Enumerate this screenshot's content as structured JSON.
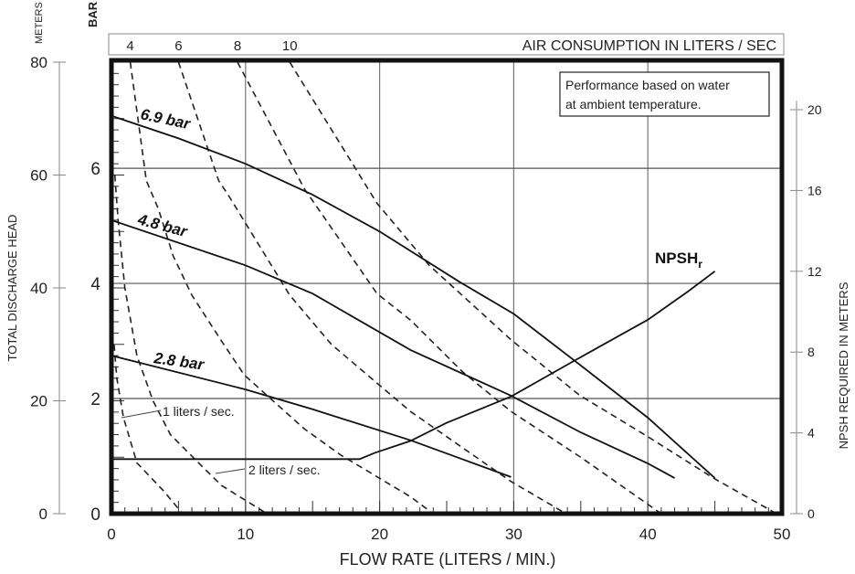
{
  "chart_data": {
    "type": "line",
    "title": "",
    "xlabel": "FLOW RATE (LITERS / MIN.)",
    "ylabel_left": "TOTAL DISCHARGE HEAD",
    "ylabel_left_unit": "METERS",
    "ylabel_left_bar_unit": "BAR",
    "ylabel_right": "NPSH REQUIRED IN METERS",
    "top_axis_title": "AIR CONSUMPTION IN LITERS / SEC",
    "note": "Performance based on water at ambient temperature.",
    "note_lines": [
      "Performance based on water",
      "at ambient temperature."
    ],
    "xlim": [
      0,
      50
    ],
    "ylim_meters": [
      0,
      80
    ],
    "ylim_bar": [
      0,
      7.8
    ],
    "ylim_npsh": [
      0,
      22
    ],
    "grid": true,
    "x_ticks": [
      "0",
      "10",
      "20",
      "30",
      "40",
      "50"
    ],
    "y_ticks_meters": [
      "0",
      "20",
      "40",
      "60",
      "80"
    ],
    "y_ticks_bar": [
      "0",
      "2",
      "4",
      "6"
    ],
    "y_ticks_npsh": [
      "0",
      "4",
      "8",
      "12",
      "16",
      "20"
    ],
    "top_ticks": [
      "4",
      "6",
      "8",
      "10"
    ],
    "pressure_curves": [
      {
        "name": "6.9 bar",
        "points": [
          [
            0,
            70.5
          ],
          [
            5,
            66.5
          ],
          [
            10,
            62
          ],
          [
            15,
            56.5
          ],
          [
            20,
            50
          ],
          [
            26,
            41
          ],
          [
            30,
            35.4
          ],
          [
            34.6,
            27
          ],
          [
            40,
            17
          ],
          [
            45,
            6.3
          ]
        ]
      },
      {
        "name": "4.8 bar",
        "points": [
          [
            0,
            52
          ],
          [
            10,
            44
          ],
          [
            15,
            39
          ],
          [
            22.3,
            29
          ],
          [
            29.8,
            20.9
          ],
          [
            35,
            14.4
          ],
          [
            40,
            8.9
          ],
          [
            42,
            6.3
          ]
        ]
      },
      {
        "name": "2.8 bar",
        "points": [
          [
            0,
            28
          ],
          [
            10,
            22
          ],
          [
            15,
            18.5
          ],
          [
            22.3,
            13
          ],
          [
            29.8,
            6.5
          ]
        ]
      }
    ],
    "air_curves": [
      {
        "name": "1 liters / sec.",
        "points": [
          [
            0.2,
            30
          ],
          [
            0.4,
            24
          ],
          [
            0.9,
            17
          ],
          [
            1.9,
            9
          ],
          [
            3.9,
            4
          ],
          [
            5.3,
            0
          ]
        ]
      },
      {
        "name": "2 liters / sec.",
        "points": [
          [
            0.25,
            60
          ],
          [
            0.5,
            52
          ],
          [
            1,
            40
          ],
          [
            1.9,
            28
          ],
          [
            3.1,
            20
          ],
          [
            4.4,
            14
          ],
          [
            6.5,
            9
          ],
          [
            8.2,
            5
          ],
          [
            11.6,
            0
          ]
        ]
      },
      {
        "name": "4",
        "points": [
          [
            1.4,
            80
          ],
          [
            2.6,
            59
          ],
          [
            3.5,
            54
          ],
          [
            4.6,
            45.7
          ],
          [
            6,
            38.7
          ],
          [
            8.2,
            30.6
          ],
          [
            9.9,
            24.6
          ],
          [
            11.9,
            20.3
          ],
          [
            14.4,
            15
          ],
          [
            17.1,
            10.4
          ],
          [
            22.3,
            3
          ],
          [
            24,
            0
          ]
        ]
      },
      {
        "name": "6",
        "points": [
          [
            5,
            80
          ],
          [
            8,
            59
          ],
          [
            8.7,
            56.5
          ],
          [
            13.3,
            38.7
          ],
          [
            16.4,
            30
          ],
          [
            22.3,
            18.1
          ],
          [
            29.8,
            5.7
          ],
          [
            33.9,
            0
          ]
        ]
      },
      {
        "name": "8",
        "points": [
          [
            9.4,
            80
          ],
          [
            14.4,
            57.5
          ],
          [
            19.8,
            39
          ],
          [
            22.3,
            34.3
          ],
          [
            26.2,
            25.1
          ],
          [
            29.8,
            18.1
          ],
          [
            35,
            10
          ],
          [
            41,
            0
          ]
        ]
      },
      {
        "name": "10",
        "points": [
          [
            13.3,
            80
          ],
          [
            19.8,
            55
          ],
          [
            23.7,
            44
          ],
          [
            29.8,
            30.8
          ],
          [
            34.9,
            21
          ],
          [
            39.9,
            13.8
          ],
          [
            44.9,
            6.3
          ],
          [
            49.6,
            0
          ]
        ]
      }
    ],
    "npsh_curve": {
      "name": "NPSH",
      "subscript": "r",
      "points": [
        [
          0,
          2.7
        ],
        [
          18.5,
          2.7
        ],
        [
          19.6,
          3.0
        ],
        [
          22.3,
          3.6
        ],
        [
          25,
          4.5
        ],
        [
          29.8,
          5.8
        ],
        [
          34.6,
          7.6
        ],
        [
          40,
          9.6
        ],
        [
          43,
          11
        ],
        [
          45,
          12
        ]
      ]
    }
  }
}
